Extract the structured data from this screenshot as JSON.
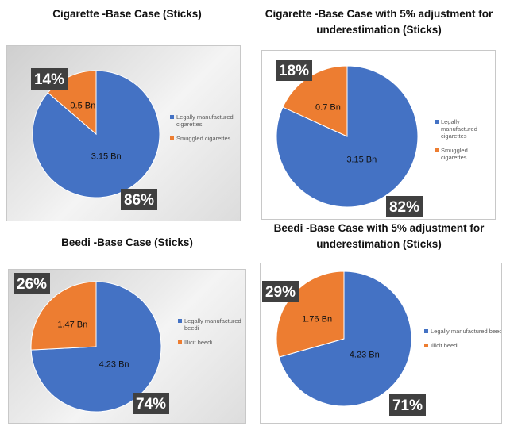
{
  "colors": {
    "legal": "#4472C4",
    "illicit": "#ED7D31",
    "callout_bg": "#404040",
    "callout_text": "#ffffff",
    "slice_label": "#111111",
    "legend_text": "#595959"
  },
  "chart_data": [
    {
      "type": "pie",
      "title": "Cigarette -Base Case (Sticks)",
      "slices": [
        {
          "label": "Legally manufactured cigarettes",
          "value": 3.15,
          "value_label": "3.15 Bn",
          "percent_label": "86%",
          "color": "#4472C4"
        },
        {
          "label": "Smuggled cigarettes",
          "value": 0.5,
          "value_label": "0.5 Bn",
          "percent_label": "14%",
          "color": "#ED7D31"
        }
      ],
      "legend_placement": "right"
    },
    {
      "type": "pie",
      "title": "Cigarette -Base Case with 5% adjustment for underestimation (Sticks)",
      "slices": [
        {
          "label": "Legally manufactured cigarettes",
          "value": 3.15,
          "value_label": "3.15 Bn",
          "percent_label": "82%",
          "color": "#4472C4"
        },
        {
          "label": "Smuggled cigarettes",
          "value": 0.7,
          "value_label": "0.7 Bn",
          "percent_label": "18%",
          "color": "#ED7D31"
        }
      ],
      "legend_placement": "right"
    },
    {
      "type": "pie",
      "title": "Beedi -Base Case (Sticks)",
      "slices": [
        {
          "label": "Legally manufactured beedi",
          "value": 4.23,
          "value_label": "4.23 Bn",
          "percent_label": "74%",
          "color": "#4472C4"
        },
        {
          "label": "Illicit beedi",
          "value": 1.47,
          "value_label": "1.47 Bn",
          "percent_label": "26%",
          "color": "#ED7D31"
        }
      ],
      "legend_placement": "right"
    },
    {
      "type": "pie",
      "title": "Beedi -Base Case with 5% adjustment for underestimation (Sticks)",
      "slices": [
        {
          "label": "Legally manufactured beedi",
          "value": 4.23,
          "value_label": "4.23 Bn",
          "percent_label": "71%",
          "color": "#4472C4"
        },
        {
          "label": "Illicit beedi",
          "value": 1.76,
          "value_label": "1.76 Bn",
          "percent_label": "29%",
          "color": "#ED7D31"
        }
      ],
      "legend_placement": "right"
    }
  ]
}
